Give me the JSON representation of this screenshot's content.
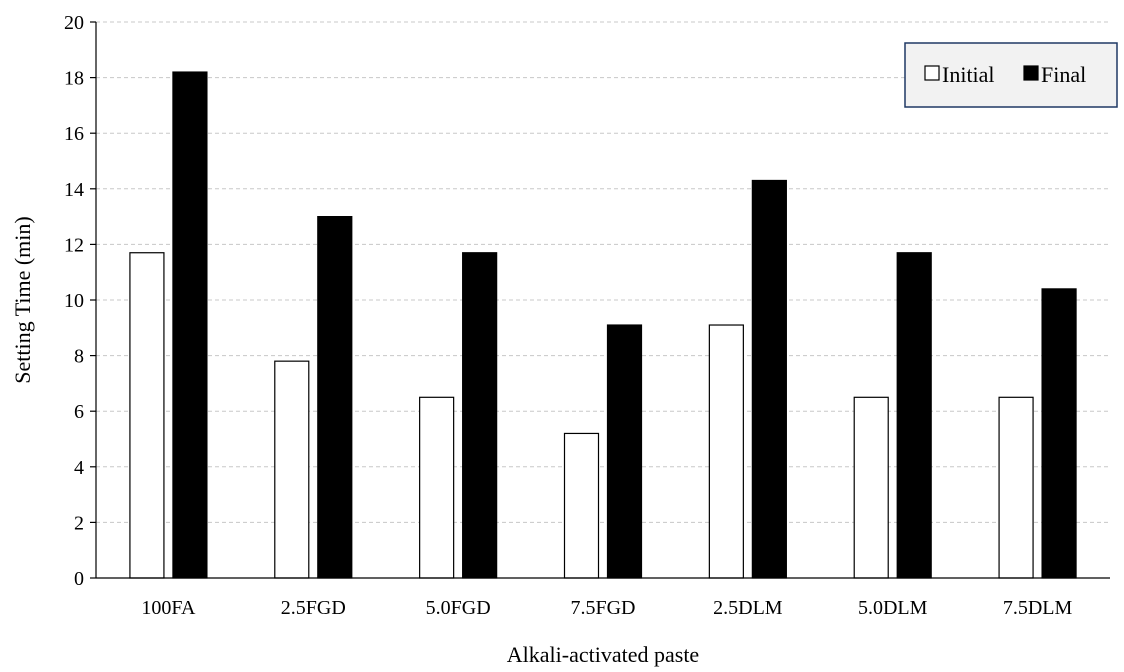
{
  "chart_data": {
    "type": "bar",
    "categories": [
      "100FA",
      "2.5FGD",
      "5.0FGD",
      "7.5FGD",
      "2.5DLM",
      "5.0DLM",
      "7.5DLM"
    ],
    "series": [
      {
        "name": "Initial",
        "values": [
          11.7,
          7.8,
          6.5,
          5.2,
          9.1,
          6.5,
          6.5
        ],
        "fill": "#ffffff",
        "stroke": "#000000"
      },
      {
        "name": "Final",
        "values": [
          18.2,
          13.0,
          11.7,
          9.1,
          14.3,
          11.7,
          10.4
        ],
        "fill": "#000000",
        "stroke": "#000000"
      }
    ],
    "xlabel": "Alkali-activated paste",
    "ylabel": "Setting Time (min)",
    "ylim": [
      0,
      20
    ],
    "yticks": [
      0,
      2,
      4,
      6,
      8,
      10,
      12,
      14,
      16,
      18,
      20
    ],
    "grid": true,
    "legend_position": "top-right",
    "legend_border_color": "#1f3864",
    "legend_bg_color": "#f2f2f2"
  }
}
